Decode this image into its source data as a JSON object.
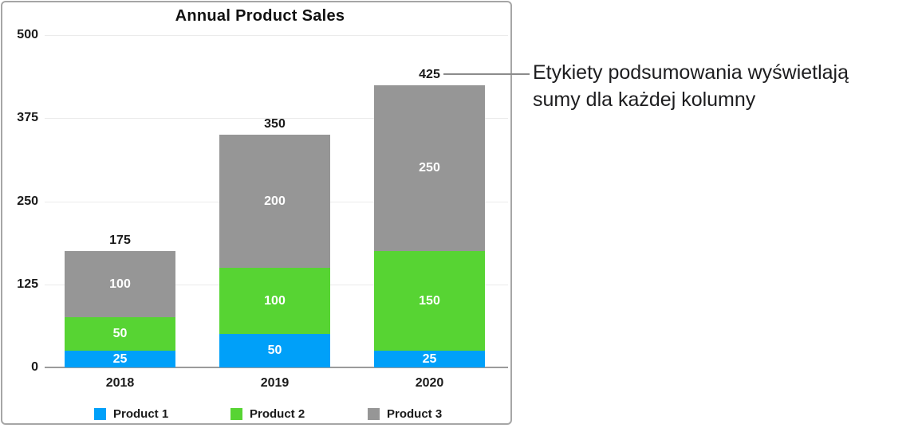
{
  "chart_data": {
    "type": "bar",
    "subtype": "stacked",
    "title": "Annual Product Sales",
    "categories": [
      "2018",
      "2019",
      "2020"
    ],
    "series": [
      {
        "name": "Product 1",
        "color": "#00a0f9",
        "values": [
          25,
          50,
          25
        ]
      },
      {
        "name": "Product 2",
        "color": "#57d433",
        "values": [
          50,
          100,
          150
        ]
      },
      {
        "name": "Product 3",
        "color": "#969696",
        "values": [
          100,
          200,
          250
        ]
      }
    ],
    "totals": [
      175,
      350,
      425
    ],
    "y_ticks": [
      0,
      125,
      250,
      375,
      500
    ],
    "ylim": [
      0,
      500
    ],
    "grid": true,
    "legend_position": "bottom"
  },
  "annotation": {
    "line1": "Etykiety podsumowania wyświetlają",
    "line2": "sumy dla każdej kolumny"
  },
  "colors": {
    "product1": "#00a0f9",
    "product2": "#57d433",
    "product3": "#969696",
    "axis_line": "#9b9b9b",
    "gridline": "#ebebeb",
    "frame_border": "#a6a6a6",
    "callout_line": "#8c8c8c",
    "text": "#1a1a1a",
    "segment_label": "#ffffff"
  }
}
